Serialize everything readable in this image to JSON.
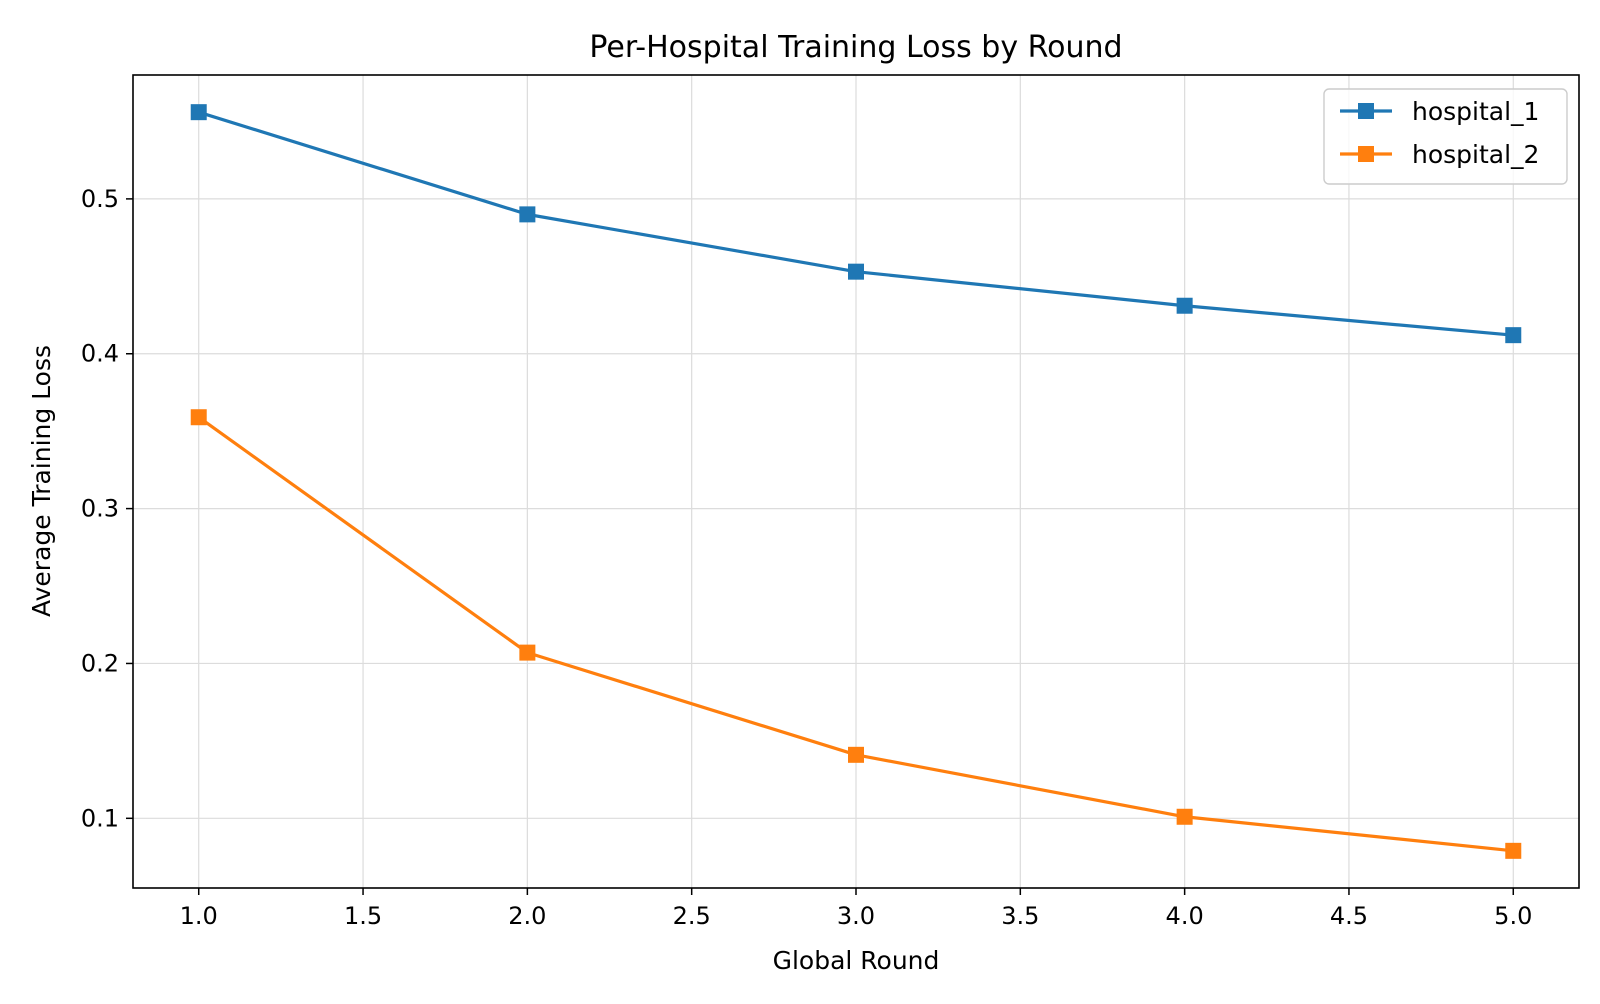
{
  "chart_data": {
    "type": "line",
    "title": "Per-Hospital Training Loss by Round",
    "xlabel": "Global Round",
    "ylabel": "Average Training Loss",
    "x": [
      1,
      2,
      3,
      4,
      5
    ],
    "series": [
      {
        "name": "hospital_1",
        "color": "#1f77b4",
        "marker": "square",
        "values": [
          0.556,
          0.49,
          0.453,
          0.431,
          0.412
        ]
      },
      {
        "name": "hospital_2",
        "color": "#ff7f0e",
        "marker": "square",
        "values": [
          0.359,
          0.207,
          0.141,
          0.101,
          0.079
        ]
      }
    ],
    "xlim": [
      0.8,
      5.2
    ],
    "ylim": [
      0.055,
      0.58
    ],
    "xticks": [
      {
        "value": 1.0,
        "label": "1.0"
      },
      {
        "value": 1.5,
        "label": "1.5"
      },
      {
        "value": 2.0,
        "label": "2.0"
      },
      {
        "value": 2.5,
        "label": "2.5"
      },
      {
        "value": 3.0,
        "label": "3.0"
      },
      {
        "value": 3.5,
        "label": "3.5"
      },
      {
        "value": 4.0,
        "label": "4.0"
      },
      {
        "value": 4.5,
        "label": "4.5"
      },
      {
        "value": 5.0,
        "label": "5.0"
      }
    ],
    "yticks": [
      {
        "value": 0.1,
        "label": "0.1"
      },
      {
        "value": 0.2,
        "label": "0.2"
      },
      {
        "value": 0.3,
        "label": "0.3"
      },
      {
        "value": 0.4,
        "label": "0.4"
      },
      {
        "value": 0.5,
        "label": "0.5"
      }
    ],
    "grid": true,
    "legend_position": "top-right"
  }
}
